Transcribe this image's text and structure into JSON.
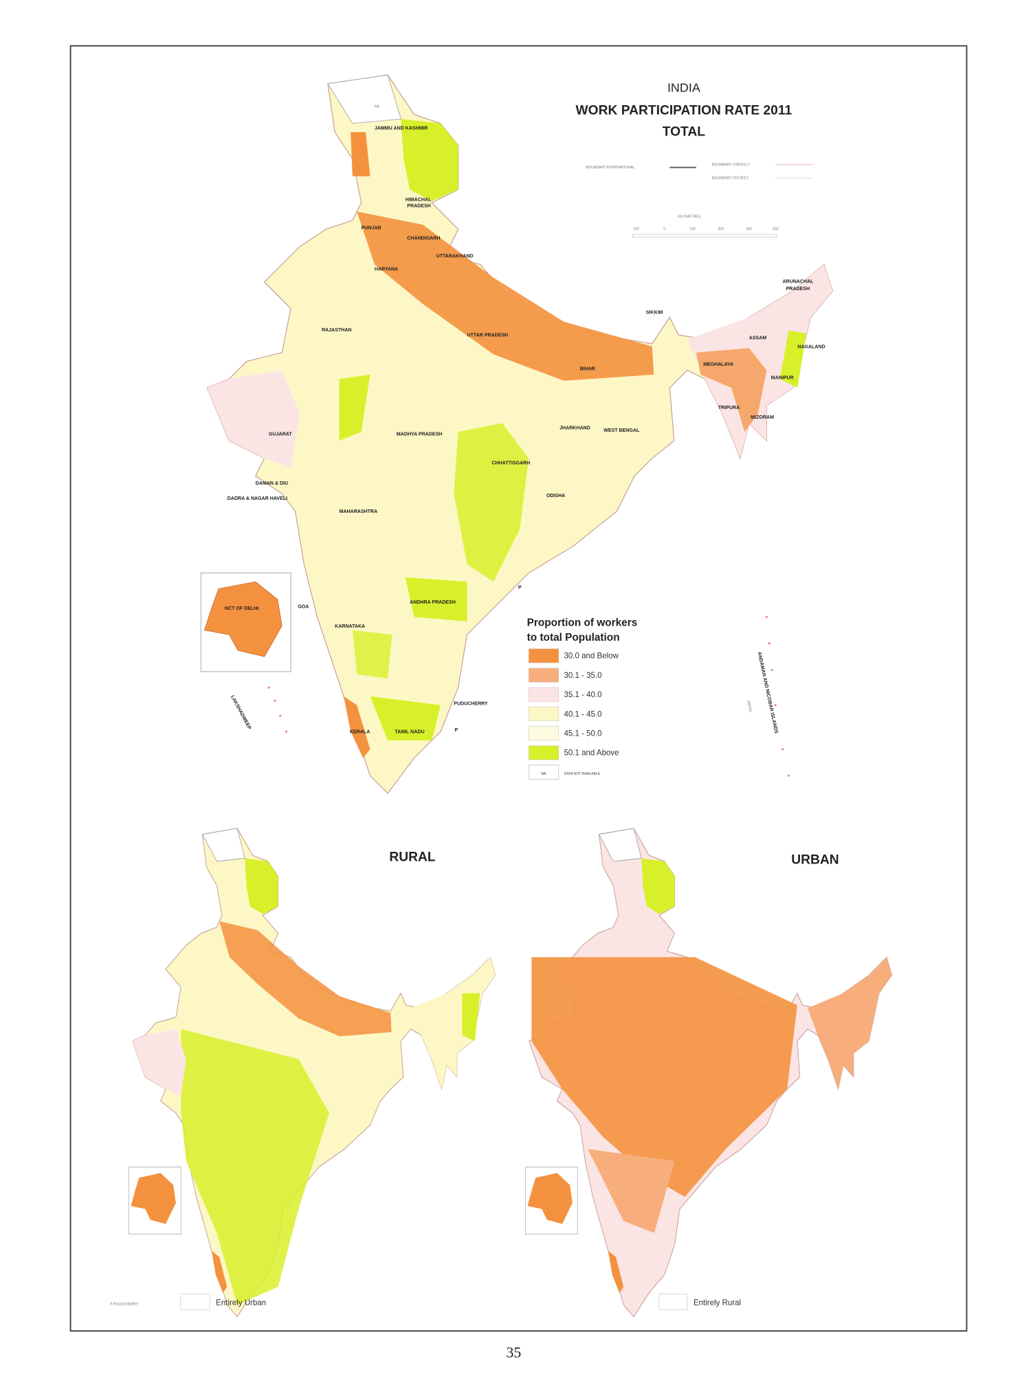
{
  "title": {
    "country": "INDIA",
    "main": "WORK PARTICIPATION RATE 2011",
    "sub": "TOTAL"
  },
  "boundary_legend": {
    "international": "BOUNDARY INTERNATIONAL",
    "state": "BOUNDARY STATE/U.T",
    "district": "BOUNDARY DISTRICT"
  },
  "scale_bar": {
    "unit": "KILOMETRES",
    "ticks": [
      "100",
      "0",
      "100",
      "200",
      "300",
      "400"
    ]
  },
  "legend": {
    "title_line1": "Proportion of workers",
    "title_line2": "to total Population",
    "classes": [
      {
        "label": "30.0 and Below",
        "color": "#f4913e"
      },
      {
        "label": "30.1 - 35.0",
        "color": "#f7ae7c"
      },
      {
        "label": "35.1 - 40.0",
        "color": "#fbe4e4"
      },
      {
        "label": "40.1 - 45.0",
        "color": "#fdf7c6"
      },
      {
        "label": "45.1 - 50.0",
        "color": "#fefbe0"
      },
      {
        "label": "50.1 and Above",
        "color": "#d8f02a"
      }
    ],
    "na_code": "NA",
    "na_label": "DATA NOT AVAILABLE"
  },
  "state_labels": [
    "NA",
    "JAMMU AND KASHMIR",
    "HIMACHAL",
    "PRADESH",
    "PUNJAB",
    "CHANDIGARH",
    "UTTARAKHAND",
    "HARYANA",
    "RAJASTHAN",
    "UTTAR PRADESH",
    "SIKKIM",
    "ARUNACHAL",
    "PRADESH",
    "ASSAM",
    "NAGALAND",
    "MEGHALAYA",
    "MANIPUR",
    "TRIPURA",
    "MIZORAM",
    "BIHAR",
    "JHARKHAND",
    "WEST BENGAL",
    "GUJARAT",
    "MADHYA PRADESH",
    "CHHATTISGARH",
    "ODISHA",
    "DAMAN & DIU",
    "DADRA & NAGAR HAVELI",
    "MAHARASHTRA",
    "NCT OF DELHI",
    "GOA",
    "ANDHRA PRADESH",
    "KARNATAKA",
    "PUDUCHERRY",
    "KERALA",
    "TAMIL NADU",
    "P",
    "P"
  ],
  "island_labels": {
    "lakshadweep": "LAKSHADWEEP",
    "andaman": "ANDAMAN AND NICOBAR ISLANDS",
    "india": "(INDIA)"
  },
  "rural_map": {
    "title": "RURAL",
    "footnote": "P PUDUCHERRY",
    "box_label": "Entirely Urban"
  },
  "urban_map": {
    "title": "URBAN",
    "box_label": "Entirely Rural"
  },
  "page_number": "35"
}
